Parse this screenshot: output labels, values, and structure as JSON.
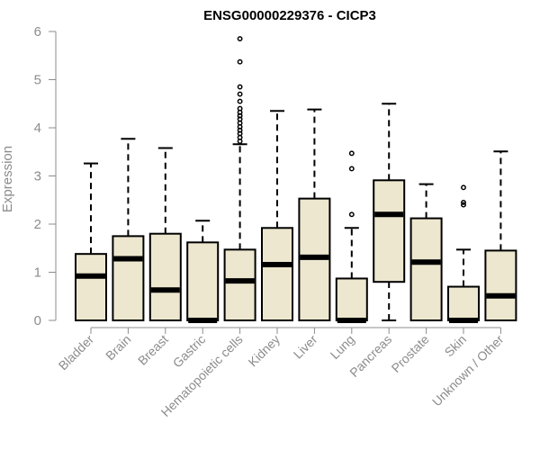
{
  "chart_data": {
    "type": "boxplot",
    "title": "ENSG00000229376 - CICP3",
    "ylabel": "Expression",
    "xlabel": "",
    "ylim": [
      0,
      6
    ],
    "yticks": [
      "0",
      "1",
      "2",
      "3",
      "4",
      "5",
      "6"
    ],
    "grid": false,
    "legend": "none",
    "colors": {
      "box_fill": "#ede7cf",
      "stroke": "#000000",
      "axis_text": "#8c8c8c"
    },
    "categories": [
      "Bladder",
      "Brain",
      "Breast",
      "Gastric",
      "Hematopoietic cells",
      "Kidney",
      "Liver",
      "Lung",
      "Pancreas",
      "Prostate",
      "Skin",
      "Unknown / Other"
    ],
    "boxes": [
      {
        "q1": 0.0,
        "median": 0.92,
        "q3": 1.38,
        "whisker_low": 0.0,
        "whisker_high": 3.26,
        "outliers": []
      },
      {
        "q1": 0.0,
        "median": 1.28,
        "q3": 1.75,
        "whisker_low": 0.0,
        "whisker_high": 3.77,
        "outliers": []
      },
      {
        "q1": 0.0,
        "median": 0.63,
        "q3": 1.8,
        "whisker_low": 0.0,
        "whisker_high": 3.58,
        "outliers": []
      },
      {
        "q1": 0.0,
        "median": 0.0,
        "q3": 1.62,
        "whisker_low": 0.0,
        "whisker_high": 2.07,
        "outliers": []
      },
      {
        "q1": 0.0,
        "median": 0.82,
        "q3": 1.47,
        "whisker_low": 0.0,
        "whisker_high": 3.66,
        "outliers": [
          3.72,
          3.8,
          3.88,
          3.95,
          4.02,
          4.1,
          4.18,
          4.25,
          4.32,
          4.4,
          4.55,
          4.7,
          4.85,
          5.37,
          5.85
        ]
      },
      {
        "q1": 0.0,
        "median": 1.16,
        "q3": 1.92,
        "whisker_low": 0.0,
        "whisker_high": 4.35,
        "outliers": []
      },
      {
        "q1": 0.0,
        "median": 1.31,
        "q3": 2.53,
        "whisker_low": 0.0,
        "whisker_high": 4.38,
        "outliers": []
      },
      {
        "q1": 0.0,
        "median": 0.0,
        "q3": 0.87,
        "whisker_low": 0.0,
        "whisker_high": 1.92,
        "outliers": [
          2.2,
          3.15,
          3.47
        ]
      },
      {
        "q1": 0.8,
        "median": 2.2,
        "q3": 2.91,
        "whisker_low": 0.0,
        "whisker_high": 4.5,
        "outliers": []
      },
      {
        "q1": 0.0,
        "median": 1.21,
        "q3": 2.12,
        "whisker_low": 0.0,
        "whisker_high": 2.83,
        "outliers": []
      },
      {
        "q1": 0.0,
        "median": 0.0,
        "q3": 0.7,
        "whisker_low": 0.0,
        "whisker_high": 1.47,
        "outliers": [
          2.4,
          2.45,
          2.76
        ]
      },
      {
        "q1": 0.0,
        "median": 0.51,
        "q3": 1.45,
        "whisker_low": 0.0,
        "whisker_high": 3.51,
        "outliers": []
      }
    ]
  }
}
